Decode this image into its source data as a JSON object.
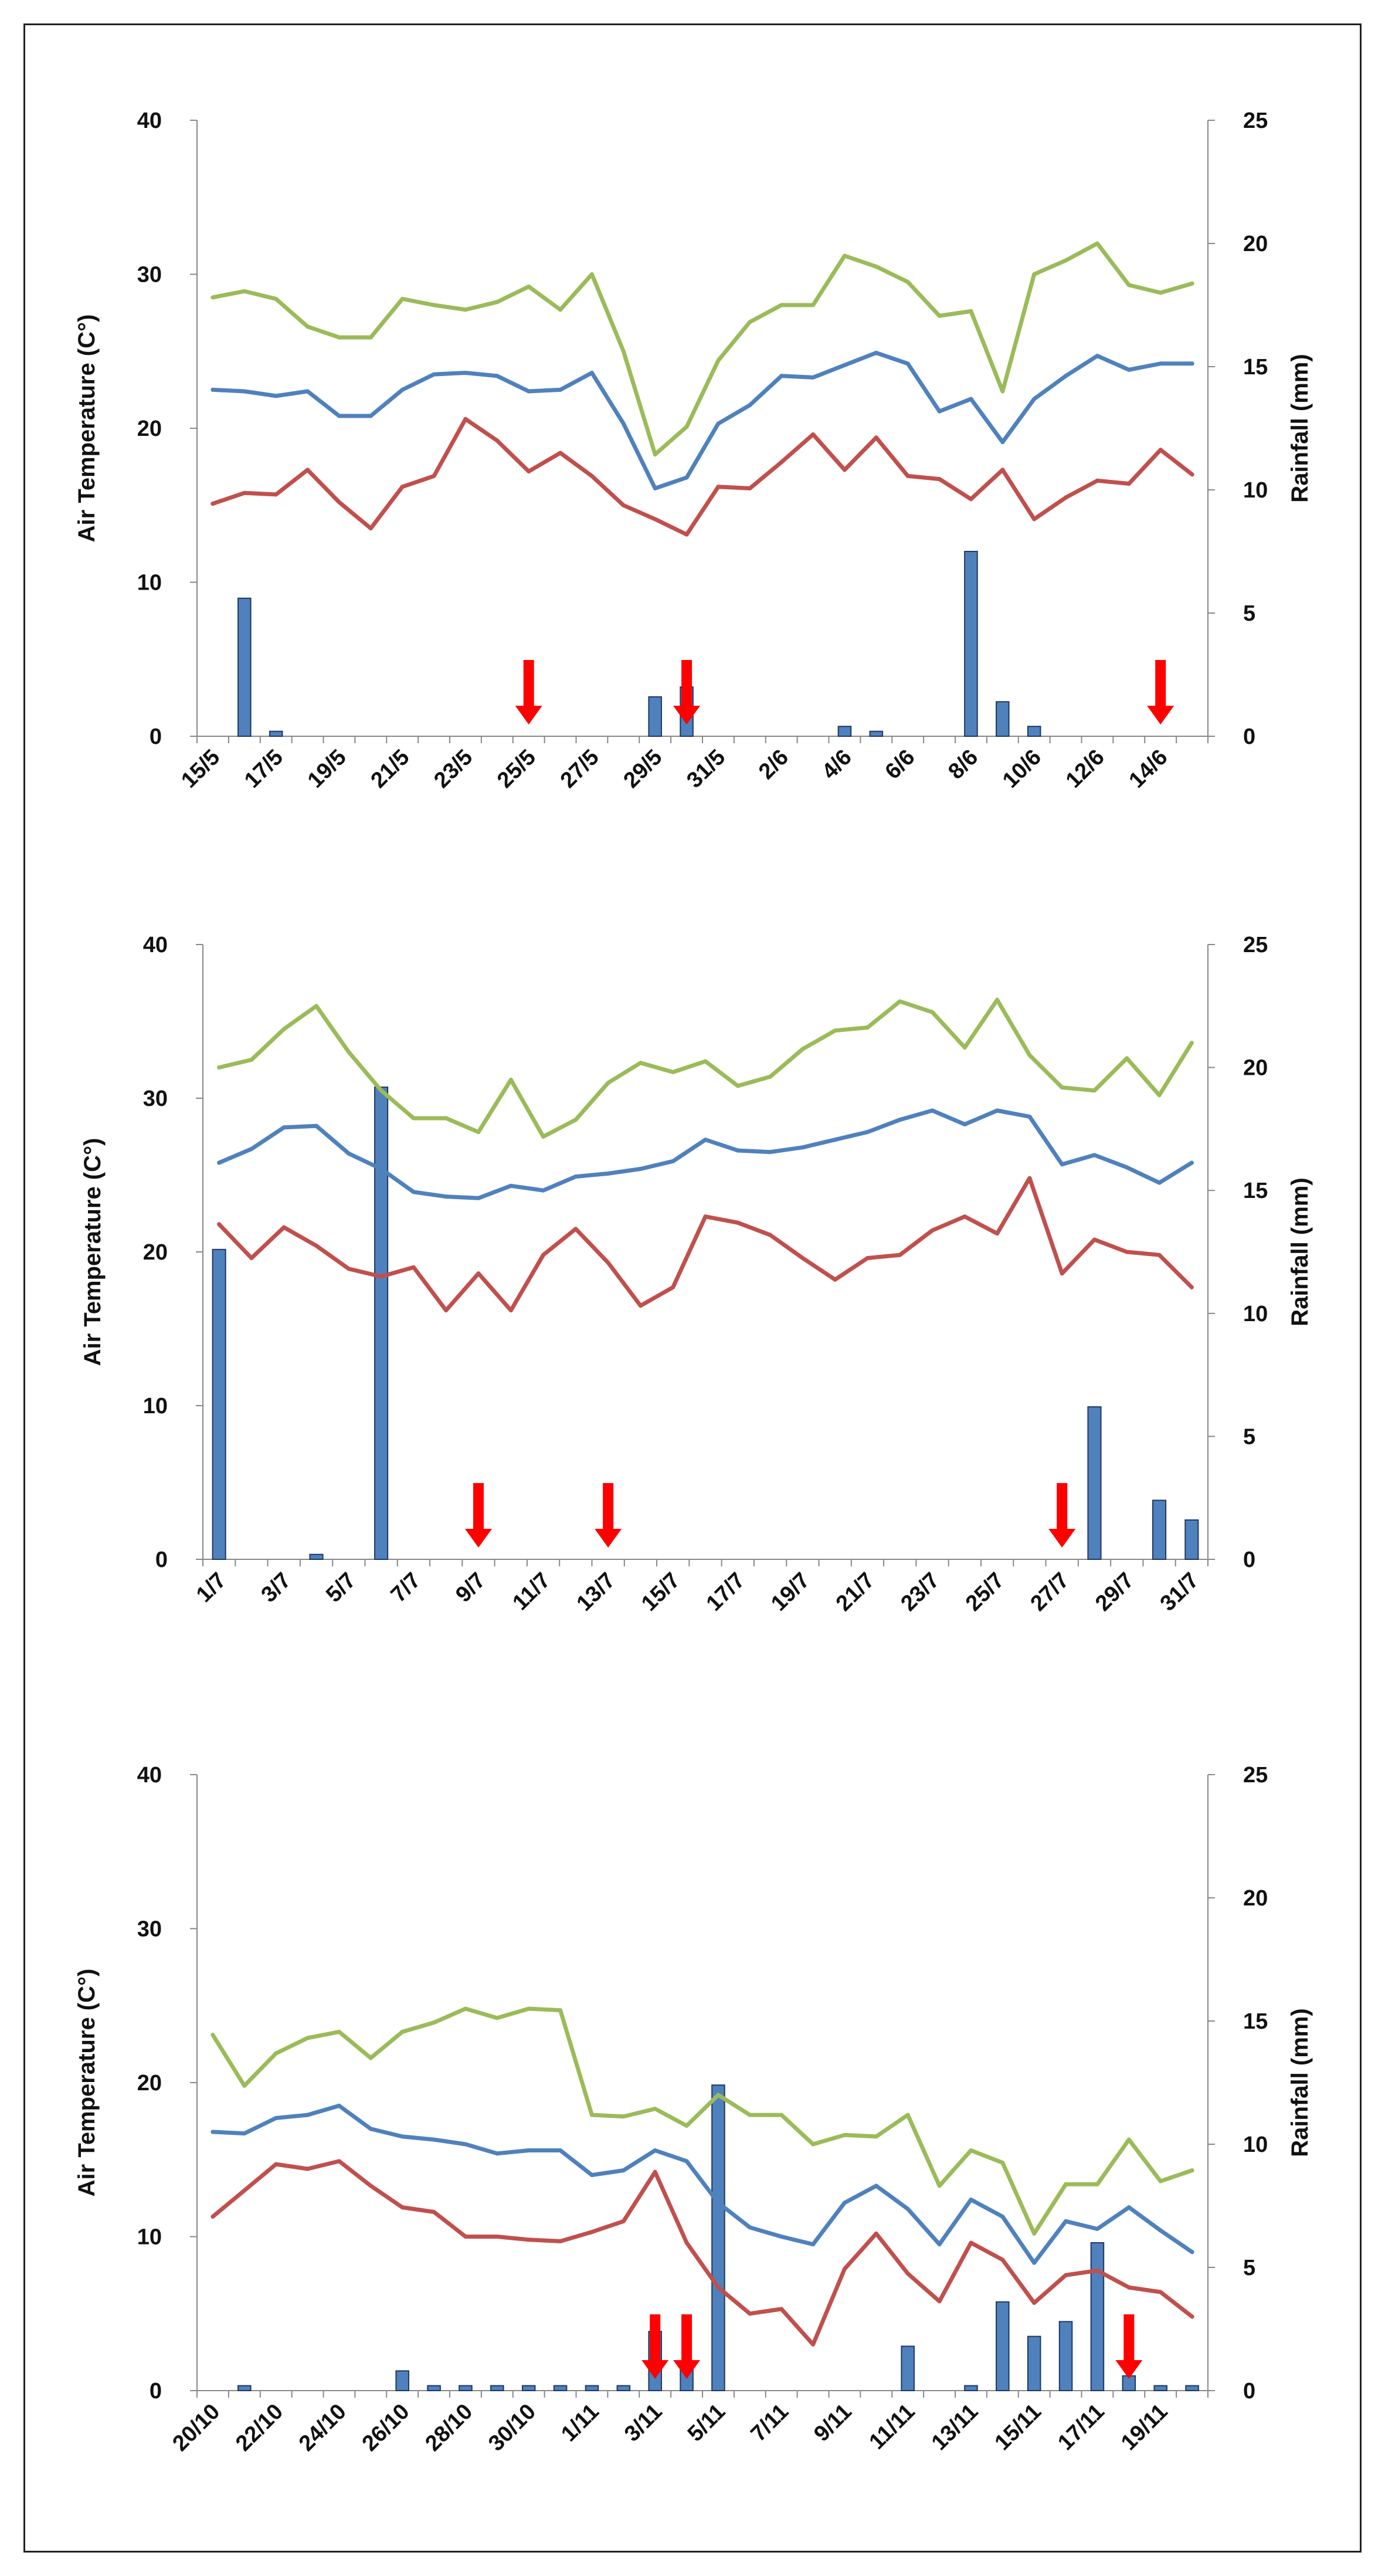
{
  "colors": {
    "max_temp": "#9BBB59",
    "mean_temp": "#4F81BD",
    "min_temp": "#C0504D",
    "rainfall": "#4F81BD",
    "arrow": "#FF0000"
  },
  "chart_data": [
    {
      "type": "bar+line",
      "title": "",
      "ylabel": "Air Temperature (C°)",
      "y2label": "Rainfall (mm)",
      "ylim": [
        0,
        40
      ],
      "y2lim": [
        0,
        25
      ],
      "yticks": [
        0,
        10,
        20,
        30,
        40
      ],
      "y2ticks": [
        0,
        5,
        10,
        15,
        20,
        25
      ],
      "x_start": "15/5",
      "categories": [
        "15/5",
        "16/5",
        "17/5",
        "18/5",
        "19/5",
        "20/5",
        "21/5",
        "22/5",
        "23/5",
        "24/5",
        "25/5",
        "26/5",
        "27/5",
        "28/5",
        "29/5",
        "30/5",
        "31/5",
        "1/6",
        "2/6",
        "3/6",
        "4/6",
        "5/6",
        "6/6",
        "7/6",
        "8/6",
        "9/6",
        "10/6",
        "11/6",
        "12/6",
        "13/6",
        "14/6",
        "15/6"
      ],
      "tick_labels": [
        "15/5",
        "17/5",
        "19/5",
        "21/5",
        "23/5",
        "25/5",
        "27/5",
        "29/5",
        "31/5",
        "2/6",
        "4/6",
        "6/6",
        "8/6",
        "10/6",
        "12/6",
        "14/6"
      ],
      "series": [
        {
          "name": "max_temp",
          "values": [
            28.5,
            28.9,
            28.4,
            26.6,
            25.9,
            25.9,
            28.4,
            28.0,
            27.7,
            28.2,
            29.2,
            27.7,
            30.0,
            25.0,
            18.3,
            20.1,
            24.4,
            26.9,
            28.0,
            28.0,
            31.2,
            30.5,
            29.5,
            27.3,
            27.6,
            22.4,
            30.0,
            30.9,
            32.0,
            29.3,
            28.8,
            29.4
          ]
        },
        {
          "name": "mean_temp",
          "values": [
            22.5,
            22.4,
            22.1,
            22.4,
            20.8,
            20.8,
            22.5,
            23.5,
            23.6,
            23.4,
            22.4,
            22.5,
            23.6,
            20.3,
            16.1,
            16.8,
            20.3,
            21.5,
            23.4,
            23.3,
            24.1,
            24.9,
            24.2,
            21.1,
            21.9,
            19.1,
            21.9,
            23.4,
            24.7,
            23.8,
            24.2,
            24.2
          ]
        },
        {
          "name": "min_temp",
          "values": [
            15.1,
            15.8,
            15.7,
            17.3,
            15.2,
            13.5,
            16.2,
            16.9,
            20.6,
            19.2,
            17.2,
            18.4,
            16.9,
            15.0,
            14.1,
            13.1,
            16.2,
            16.1,
            17.8,
            19.6,
            17.3,
            19.4,
            16.9,
            16.7,
            15.4,
            17.3,
            14.1,
            15.5,
            16.6,
            16.4,
            18.6,
            17.0
          ]
        },
        {
          "name": "rainfall_mm",
          "values": [
            0,
            5.6,
            0.2,
            0,
            0,
            0,
            0,
            0,
            0,
            0,
            0,
            0,
            0,
            0,
            1.6,
            2.0,
            0,
            0,
            0,
            0,
            0.4,
            0.2,
            0,
            0,
            7.5,
            1.4,
            0.4,
            0,
            0,
            0,
            0,
            0
          ]
        }
      ],
      "arrow_dates": [
        "25/5",
        "30/5",
        "14/6"
      ]
    },
    {
      "type": "bar+line",
      "title": "",
      "ylabel": "Air Temperature (C°)",
      "y2label": "Rainfall (mm)",
      "ylim": [
        0,
        40
      ],
      "y2lim": [
        0,
        25
      ],
      "yticks": [
        0,
        10,
        20,
        30,
        40
      ],
      "y2ticks": [
        0,
        5,
        10,
        15,
        20,
        25
      ],
      "x_start": "1/7",
      "categories": [
        "1/7",
        "2/7",
        "3/7",
        "4/7",
        "5/7",
        "6/7",
        "7/7",
        "8/7",
        "9/7",
        "10/7",
        "11/7",
        "12/7",
        "13/7",
        "14/7",
        "15/7",
        "16/7",
        "17/7",
        "18/7",
        "19/7",
        "20/7",
        "21/7",
        "22/7",
        "23/7",
        "24/7",
        "25/7",
        "26/7",
        "27/7",
        "28/7",
        "29/7",
        "30/7",
        "31/7"
      ],
      "tick_labels": [
        "1/7",
        "3/7",
        "5/7",
        "7/7",
        "9/7",
        "11/7",
        "13/7",
        "15/7",
        "17/7",
        "19/7",
        "21/7",
        "23/7",
        "25/7",
        "27/7",
        "29/7",
        "31/7"
      ],
      "series": [
        {
          "name": "max_temp",
          "values": [
            32.0,
            32.5,
            34.5,
            36.0,
            33.0,
            30.5,
            28.7,
            28.7,
            27.8,
            31.2,
            27.5,
            28.6,
            31.0,
            32.3,
            31.7,
            32.4,
            30.8,
            31.4,
            33.2,
            34.4,
            34.6,
            36.3,
            35.6,
            33.3,
            36.4,
            32.8,
            30.7,
            30.5,
            32.6,
            30.2,
            33.6
          ]
        },
        {
          "name": "mean_temp",
          "values": [
            25.8,
            26.7,
            28.1,
            28.2,
            26.4,
            25.4,
            23.9,
            23.6,
            23.5,
            24.3,
            24.0,
            24.9,
            25.1,
            25.4,
            25.9,
            27.3,
            26.6,
            26.5,
            26.8,
            27.3,
            27.8,
            28.6,
            29.2,
            28.3,
            29.2,
            28.8,
            25.7,
            26.3,
            25.5,
            24.5,
            25.8
          ]
        },
        {
          "name": "min_temp",
          "values": [
            21.8,
            19.6,
            21.6,
            20.4,
            18.9,
            18.4,
            19.0,
            16.2,
            18.6,
            16.2,
            19.8,
            21.5,
            19.3,
            16.5,
            17.7,
            22.3,
            21.9,
            21.1,
            19.6,
            18.2,
            19.6,
            19.8,
            21.4,
            22.3,
            21.2,
            24.8,
            18.6,
            20.8,
            20.0,
            19.8,
            17.7
          ]
        },
        {
          "name": "rainfall_mm",
          "values": [
            12.6,
            0,
            0,
            0.2,
            0,
            19.2,
            0,
            0,
            0,
            0,
            0,
            0,
            0,
            0,
            0,
            0,
            0,
            0,
            0,
            0,
            0,
            0,
            0,
            0,
            0,
            0,
            0,
            6.2,
            0,
            2.4,
            1.6
          ]
        }
      ],
      "arrow_dates": [
        "9/7",
        "13/7",
        "27/7"
      ]
    },
    {
      "type": "bar+line",
      "title": "",
      "ylabel": "Air Temperature (C°)",
      "y2label": "Rainfall (mm)",
      "ylim": [
        0,
        40
      ],
      "y2lim": [
        0,
        25
      ],
      "yticks": [
        0,
        10,
        20,
        30,
        40
      ],
      "y2ticks": [
        0,
        5,
        10,
        15,
        20,
        25
      ],
      "x_start": "20/10",
      "categories": [
        "20/10",
        "21/10",
        "22/10",
        "23/10",
        "24/10",
        "25/10",
        "26/10",
        "27/10",
        "28/10",
        "29/10",
        "30/10",
        "31/10",
        "1/11",
        "2/11",
        "3/11",
        "4/11",
        "5/11",
        "6/11",
        "7/11",
        "8/11",
        "9/11",
        "10/11",
        "11/11",
        "12/11",
        "13/11",
        "14/11",
        "15/11",
        "16/11",
        "17/11",
        "18/11",
        "19/11",
        "20/11"
      ],
      "tick_labels": [
        "20/10",
        "22/10",
        "24/10",
        "26/10",
        "28/10",
        "30/10",
        "1/11",
        "3/11",
        "5/11",
        "7/11",
        "9/11",
        "11/11",
        "13/11",
        "15/11",
        "17/11",
        "19/11"
      ],
      "series": [
        {
          "name": "max_temp",
          "values": [
            23.1,
            19.8,
            21.9,
            22.9,
            23.3,
            21.6,
            23.3,
            23.9,
            24.8,
            24.2,
            24.8,
            24.7,
            17.9,
            17.8,
            18.3,
            17.2,
            19.2,
            17.9,
            17.9,
            16.0,
            16.6,
            16.5,
            17.9,
            13.3,
            15.6,
            14.8,
            10.2,
            13.4,
            13.4,
            16.3,
            13.6,
            14.3
          ]
        },
        {
          "name": "mean_temp",
          "values": [
            16.8,
            16.7,
            17.7,
            17.9,
            18.5,
            17.0,
            16.5,
            16.3,
            16.0,
            15.4,
            15.6,
            15.6,
            14.0,
            14.3,
            15.6,
            14.9,
            12.2,
            10.6,
            10.0,
            9.5,
            12.2,
            13.3,
            11.8,
            9.5,
            12.4,
            11.3,
            8.3,
            11.0,
            10.5,
            11.9,
            10.4,
            9.0
          ]
        },
        {
          "name": "min_temp",
          "values": [
            11.3,
            13.0,
            14.7,
            14.4,
            14.9,
            13.3,
            11.9,
            11.6,
            10.0,
            10.0,
            9.8,
            9.7,
            10.3,
            11.0,
            14.2,
            9.6,
            6.7,
            5.0,
            5.3,
            3.0,
            7.9,
            10.2,
            7.6,
            5.8,
            9.6,
            8.5,
            5.7,
            7.5,
            7.8,
            6.7,
            6.4,
            4.8
          ]
        },
        {
          "name": "rainfall_mm",
          "values": [
            0,
            0.2,
            0,
            0,
            0,
            0,
            0.8,
            0.2,
            0.2,
            0.2,
            0.2,
            0.2,
            0.2,
            0.2,
            2.4,
            1.0,
            12.4,
            0,
            0,
            0,
            0,
            0,
            1.8,
            0,
            0.2,
            3.6,
            2.2,
            2.8,
            6.0,
            0.6,
            0.2,
            0.2
          ]
        }
      ],
      "arrow_dates": [
        "3/11",
        "4/11",
        "18/11"
      ]
    }
  ]
}
